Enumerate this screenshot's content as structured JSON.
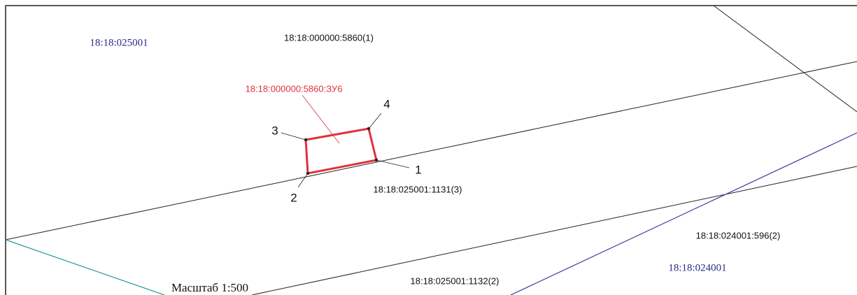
{
  "quarters": [
    "18:18:025001",
    "18:18:024001"
  ],
  "parcels": [
    "18:18:000000:5860(1)",
    "18:18:025001:1131(3)",
    "18:18:025001:1132(2)",
    "18:18:024001:596(2)"
  ],
  "new_parcel": "18:18:000000:5860:ЗУ6",
  "points": [
    "1",
    "2",
    "3",
    "4"
  ],
  "scale": "Масштаб 1:500"
}
